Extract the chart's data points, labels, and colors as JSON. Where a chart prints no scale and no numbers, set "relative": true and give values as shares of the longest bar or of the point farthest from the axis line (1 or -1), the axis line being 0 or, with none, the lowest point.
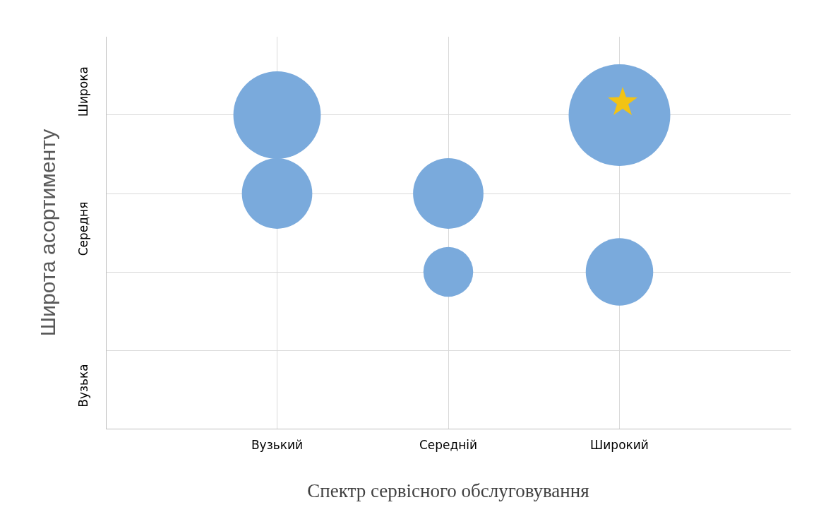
{
  "chart_data": {
    "type": "bubble",
    "xlabel": "Спектр сервісного обслуговування",
    "ylabel": "Широта асортименту",
    "categories": [
      null,
      "Вузький",
      "Середній",
      "Широкий",
      null
    ],
    "relative": true,
    "series": [
      {
        "color": "#7aaadc",
        "values": [
          null,
          1,
          0.75,
          1,
          null
        ],
        "sizes": [
          null,
          0.74,
          0.48,
          1,
          null
        ]
      },
      {
        "color": "#7aaadc",
        "values": [
          null,
          0.75,
          0.5,
          0.5,
          null
        ],
        "sizes": [
          null,
          0.48,
          0.24,
          0.44,
          null
        ]
      }
    ],
    "annotations": [
      "Широка",
      "Середня",
      "Вузька"
    ],
    "grid": true,
    "legend": false
  }
}
